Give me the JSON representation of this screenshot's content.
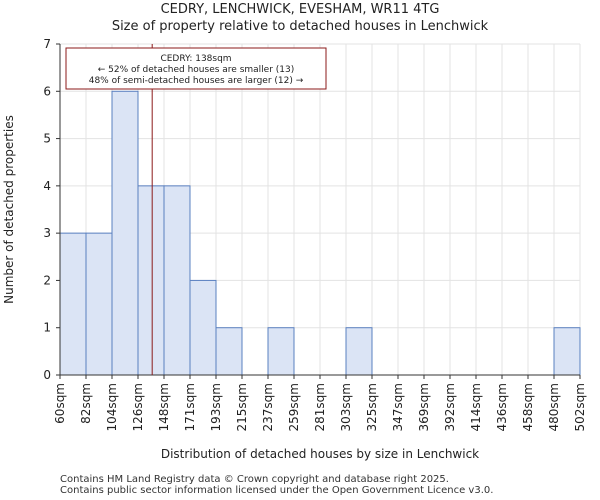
{
  "chart_data": {
    "type": "histogram",
    "title": "CEDRY, LENCHWICK, EVESHAM, WR11 4TG",
    "subtitle": "Size of property relative to detached houses in Lenchwick",
    "xlabel": "Distribution of detached houses by size in Lenchwick",
    "ylabel": "Number of detached properties",
    "ylim": [
      0,
      7
    ],
    "yticks": [
      0,
      1,
      2,
      3,
      4,
      5,
      6,
      7
    ],
    "bin_edges": [
      60,
      82,
      104,
      126,
      148,
      171,
      193,
      215,
      237,
      259,
      281,
      303,
      325,
      347,
      369,
      392,
      414,
      436,
      458,
      480,
      502
    ],
    "categories": [
      "60sqm",
      "82sqm",
      "104sqm",
      "126sqm",
      "148sqm",
      "171sqm",
      "193sqm",
      "215sqm",
      "237sqm",
      "259sqm",
      "281sqm",
      "303sqm",
      "325sqm",
      "347sqm",
      "369sqm",
      "392sqm",
      "414sqm",
      "436sqm",
      "458sqm",
      "480sqm",
      "502sqm"
    ],
    "values": [
      3,
      3,
      6,
      4,
      4,
      2,
      1,
      0,
      1,
      0,
      0,
      1,
      0,
      0,
      0,
      0,
      0,
      0,
      0,
      1
    ],
    "marker": {
      "value": 138,
      "label_lines": [
        "CEDRY: 138sqm",
        "← 52% of detached houses are smaller (13)",
        "48% of semi-detached houses are larger (12) →"
      ]
    },
    "grid": true,
    "colors": {
      "bar_fill": "#dbe4f5",
      "bar_edge": "#5a80c0",
      "marker": "#8b1a1a",
      "grid": "#e3e3e3"
    }
  },
  "footer": {
    "line1": "Contains HM Land Registry data © Crown copyright and database right 2025.",
    "line2": "Contains public sector information licensed under the Open Government Licence v3.0."
  }
}
